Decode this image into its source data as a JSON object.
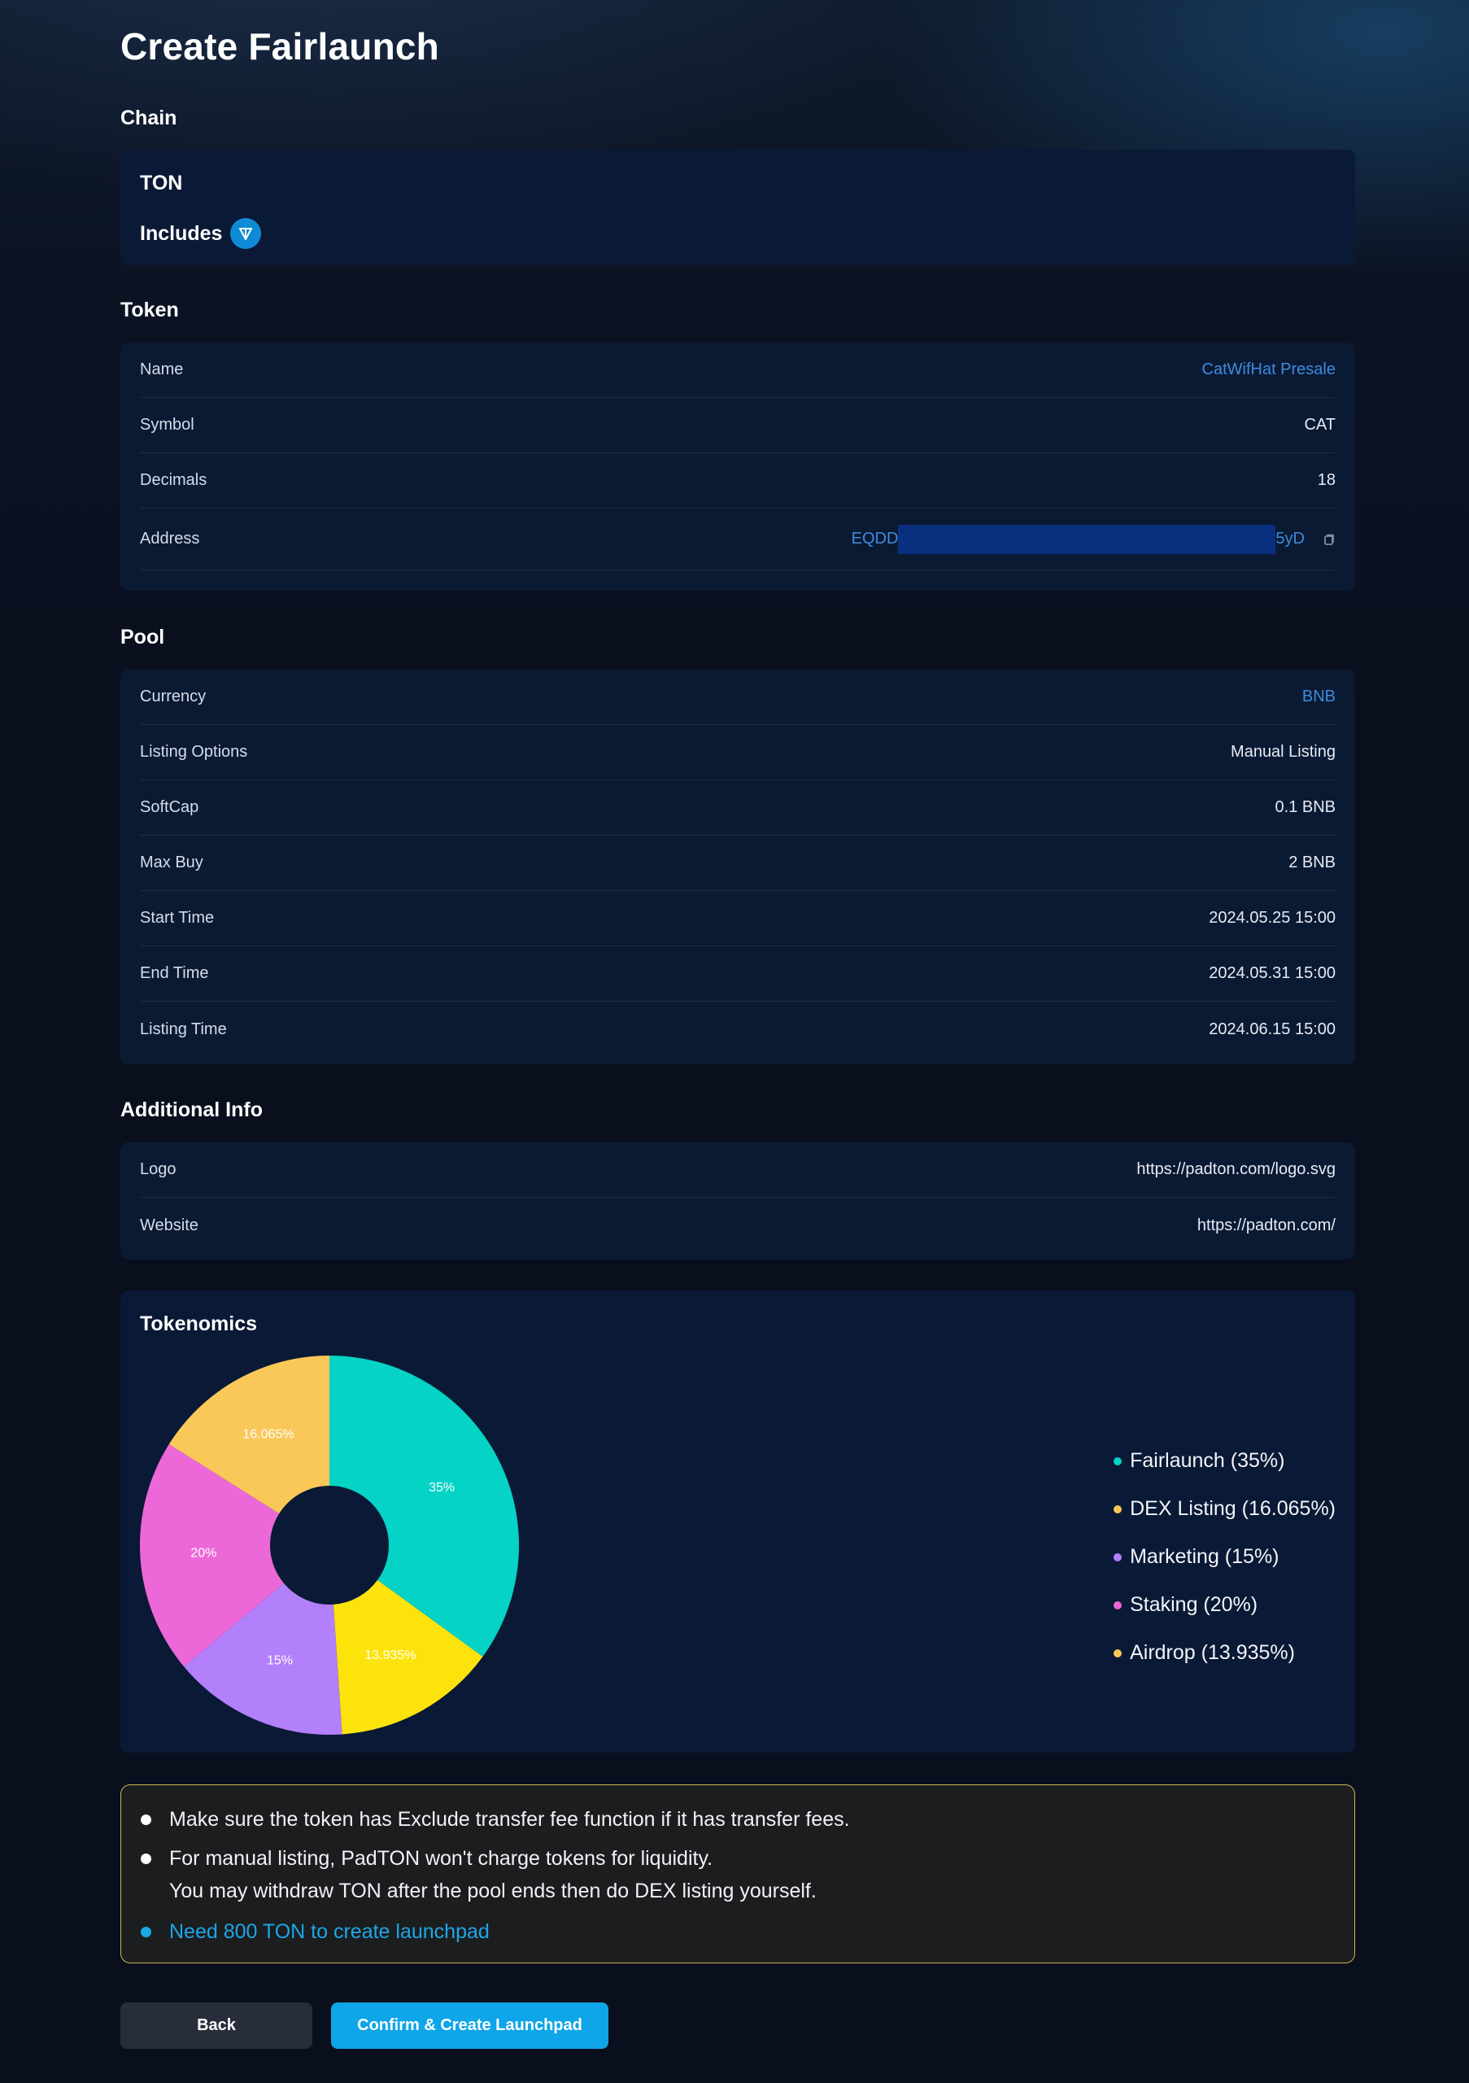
{
  "page": {
    "title": "Create Fairlaunch"
  },
  "chain": {
    "section_title": "Chain",
    "name": "TON",
    "includes_label": "Includes",
    "includes_icon": "ton-icon"
  },
  "token": {
    "section_title": "Token",
    "rows": [
      {
        "label": "Name",
        "value": "CatWifHat Presale"
      },
      {
        "label": "Symbol",
        "value": "CAT"
      },
      {
        "label": "Decimals",
        "value": "18"
      }
    ],
    "address": {
      "label": "Address",
      "prefix": "EQDD",
      "suffix": "5yD",
      "icon": "copy-icon"
    }
  },
  "pool": {
    "section_title": "Pool",
    "rows": [
      {
        "label": "Currency",
        "value": "BNB"
      },
      {
        "label": "Listing Options",
        "value": "Manual Listing"
      },
      {
        "label": "SoftCap",
        "value": "0.1 BNB"
      },
      {
        "label": "Max Buy",
        "value": "2 BNB"
      },
      {
        "label": "Start Time",
        "value": "2024.05.25 15:00"
      },
      {
        "label": "End Time",
        "value": "2024.05.31 15:00"
      },
      {
        "label": "Listing Time",
        "value": "2024.06.15 15:00"
      }
    ]
  },
  "additional_info": {
    "section_title": "Additional Info",
    "rows": [
      {
        "label": "Logo",
        "value": "https://padton.com/logo.svg"
      },
      {
        "label": "Website",
        "value": "https://padton.com/"
      }
    ]
  },
  "tokenomics": {
    "title": "Tokenomics",
    "legend": [
      "Fairlaunch (35%)",
      "DEX Listing (16.065%)",
      "Marketing (15%)",
      "Staking (20%)",
      "Airdrop (13.935%)"
    ]
  },
  "chart_data": {
    "type": "pie",
    "title": "Tokenomics",
    "donut": true,
    "legend_position": "right",
    "slices": [
      {
        "name": "Fairlaunch",
        "value": 35,
        "label": "35%",
        "color": "#04d3c6"
      },
      {
        "name": "Airdrop",
        "value": 13.935,
        "label": "13.935%",
        "color": "#fde30c"
      },
      {
        "name": "Marketing",
        "value": 15,
        "label": "15%",
        "color": "#b280fa"
      },
      {
        "name": "Staking",
        "value": 20,
        "label": "20%",
        "color": "#ec68d8"
      },
      {
        "name": "DEX Listing",
        "value": 16.065,
        "label": "16.065%",
        "color": "#f9c859"
      }
    ]
  },
  "legend_colors": [
    "#04d3c6",
    "#f9c859",
    "#b280fa",
    "#ec68d8",
    "#f9c859"
  ],
  "notice": {
    "items": [
      "Make sure the token has Exclude transfer fee function if it has transfer fees.",
      "For manual listing, PadTON won't charge tokens for liquidity.",
      "You may withdraw TON after the pool ends then do DEX listing yourself.",
      "Need 800 TON to create launchpad"
    ],
    "border_color": "#c9b64a",
    "accent_color": "#1ca7e6"
  },
  "actions": {
    "back_label": "Back",
    "confirm_label": "Confirm & Create Launchpad"
  },
  "colors": {
    "accent": "#0ea5e9",
    "link": "#3d8bde",
    "card_bg": "#0b1a33"
  }
}
